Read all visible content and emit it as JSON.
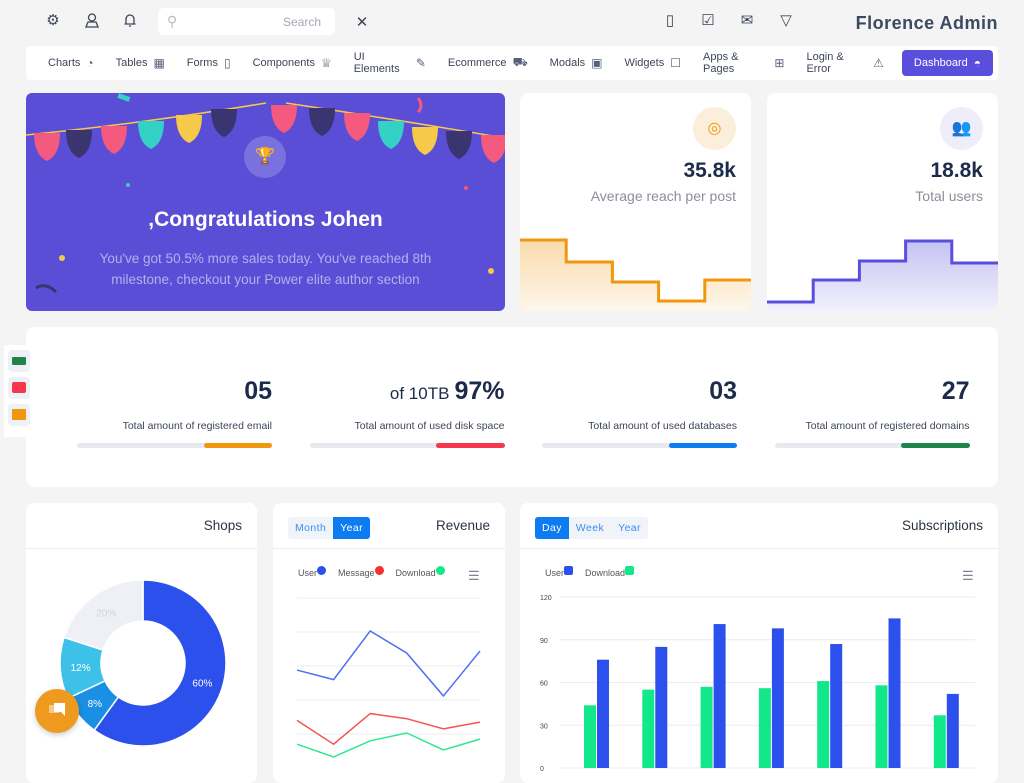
{
  "header": {
    "icons": [
      "gear-icon",
      "user-icon",
      "bell-icon"
    ],
    "search_placeholder": "Search",
    "right_icons": [
      "calendar-icon",
      "checkbox-icon",
      "mail-icon",
      "chat-icon"
    ],
    "brand": "Florence Admin"
  },
  "nav": {
    "items": [
      {
        "label": "Charts",
        "icon": "pie-chart-icon"
      },
      {
        "label": "Tables",
        "icon": "grid-icon"
      },
      {
        "label": "Forms",
        "icon": "file-icon"
      },
      {
        "label": "Components",
        "icon": "trophy-icon"
      },
      {
        "label": "UI Elements",
        "icon": "edit-icon"
      },
      {
        "label": "Ecommerce",
        "icon": "cart-icon"
      },
      {
        "label": "Modals",
        "icon": "window-icon"
      },
      {
        "label": "Widgets",
        "icon": "dropdown-icon"
      },
      {
        "label": "Apps & Pages",
        "icon": "apps-icon"
      },
      {
        "label": "Login & Error",
        "icon": "warning-icon"
      }
    ],
    "active": {
      "label": "Dashboard",
      "icon": "dashboard-icon"
    }
  },
  "hero": {
    "title": ",Congratulations Johen",
    "text": "You've got 50.5% more sales today. You've reached 8th milestone, checkout your Power elite author section",
    "color": "#5b4ed6"
  },
  "kpis": [
    {
      "value": "35.8k",
      "label": "Average reach per post",
      "icon": "target-icon",
      "color": "#f0970f",
      "levels": [
        71,
        49,
        29,
        10,
        31
      ]
    },
    {
      "value": "18.8k",
      "label": "Total users",
      "icon": "users-icon",
      "color": "#5a4fdc",
      "levels": [
        9,
        31,
        50,
        70,
        48
      ]
    }
  ],
  "stats": [
    {
      "prefix": "",
      "value": "05",
      "label": "Total amount of registered email",
      "progress": 35,
      "color": "#f0970f"
    },
    {
      "prefix": "of 10TB",
      "value": "97%",
      "label": "Total amount of used disk space",
      "progress": 35,
      "color": "#f6384f"
    },
    {
      "prefix": "",
      "value": "03",
      "label": "Total amount of used databases",
      "progress": 35,
      "color": "#0d7cf2"
    },
    {
      "prefix": "",
      "value": "27",
      "label": "Total amount of registered domains",
      "progress": 35,
      "color": "#1e8449"
    }
  ],
  "side_icons": [
    "money-icon",
    "image-icon",
    "slides-icon"
  ],
  "shops": {
    "title": "Shops",
    "chart_data": {
      "type": "pie",
      "values": [
        60,
        8,
        12,
        20
      ],
      "labels": [
        "60%",
        "8%",
        "12%",
        "20%"
      ],
      "colors": [
        "#2b50ec",
        "#1a8fe3",
        "#3ec1e8",
        "#eef0f5"
      ]
    }
  },
  "revenue": {
    "title": "Revenue",
    "toggle": [
      {
        "label": "Month",
        "active": false
      },
      {
        "label": "Year",
        "active": true
      }
    ],
    "chart_data": {
      "type": "line",
      "ylim": [
        0,
        100
      ],
      "series": [
        {
          "name": "User",
          "color": "#4f6ef0",
          "values": [
            57.6,
            52,
            80.6,
            67.6,
            42.4,
            68.8
          ]
        },
        {
          "name": "Message",
          "color": "#f55353",
          "values": [
            28,
            14,
            32,
            29,
            23,
            27
          ]
        },
        {
          "name": "Download",
          "color": "#2ee88f",
          "values": [
            14,
            6.5,
            16,
            20.6,
            10.6,
            17
          ]
        }
      ]
    }
  },
  "subscriptions": {
    "title": "Subscriptions",
    "toggle": [
      {
        "label": "Day",
        "active": true
      },
      {
        "label": "Week",
        "active": false
      },
      {
        "label": "Year",
        "active": false
      }
    ],
    "chart_data": {
      "type": "bar",
      "ylim": [
        0,
        120
      ],
      "yticks": [
        "0",
        "30",
        "60",
        "90",
        "120"
      ],
      "series": [
        {
          "name": "User",
          "color": "#2b50ec",
          "values": [
            76,
            85,
            101,
            98,
            87,
            105,
            52
          ]
        },
        {
          "name": "Download",
          "color": "#12e88a",
          "values": [
            44,
            55,
            57,
            56,
            61,
            58,
            37
          ]
        }
      ]
    }
  }
}
